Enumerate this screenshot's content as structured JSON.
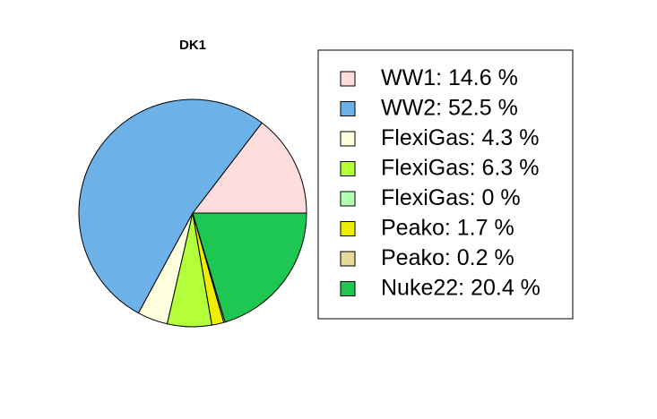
{
  "chart_data": {
    "type": "pie",
    "title": "DK1",
    "legend_position": "right",
    "slices": [
      {
        "label": "WW1",
        "value": 14.6,
        "legend": "WW1: 14.6 %",
        "color": "#FFDDDD"
      },
      {
        "label": "WW2",
        "value": 52.5,
        "legend": "WW2: 52.5 %",
        "color": "#6CB2E8"
      },
      {
        "label": "FlexiGas",
        "value": 4.3,
        "legend": "FlexiGas: 4.3 %",
        "color": "#FFFFDD"
      },
      {
        "label": "FlexiGas",
        "value": 6.3,
        "legend": "FlexiGas: 6.3 %",
        "color": "#B2FF3A"
      },
      {
        "label": "FlexiGas",
        "value": 0,
        "legend": "FlexiGas: 0 %",
        "color": "#B2FFB2"
      },
      {
        "label": "Peako",
        "value": 1.7,
        "legend": "Peako: 1.7 %",
        "color": "#EEEE00"
      },
      {
        "label": "Peako",
        "value": 0.2,
        "legend": "Peako: 0.2 %",
        "color": "#E6DA9A"
      },
      {
        "label": "Nuke22",
        "value": 20.4,
        "legend": "Nuke22: 20.4 %",
        "color": "#1DC752"
      }
    ]
  }
}
